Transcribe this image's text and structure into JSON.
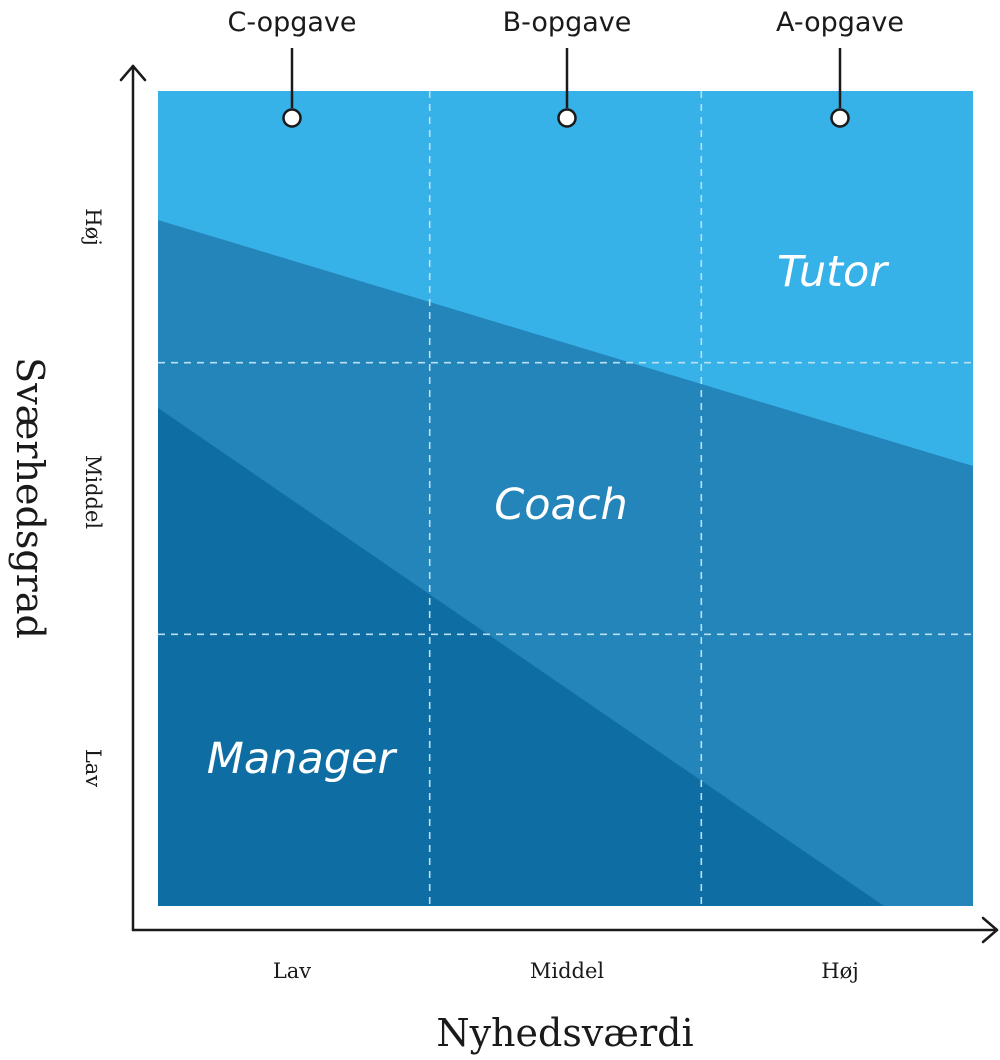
{
  "colors": {
    "tutor": "#37b2e8",
    "coach": "#2485ba",
    "manager": "#0e6ea3",
    "grid": "#b9dff2",
    "axis": "#1a1a1a"
  },
  "top_labels": [
    "C-opgave",
    "B-opgave",
    "A-opgave"
  ],
  "zones": {
    "tutor": "Tutor",
    "coach": "Coach",
    "manager": "Manager"
  },
  "x_axis": {
    "title": "Nyhedsværdi",
    "ticks": [
      "Lav",
      "Middel",
      "Høj"
    ]
  },
  "y_axis": {
    "title": "Sværhedsgrad",
    "ticks": [
      "Lav",
      "Middel",
      "Høj"
    ]
  }
}
